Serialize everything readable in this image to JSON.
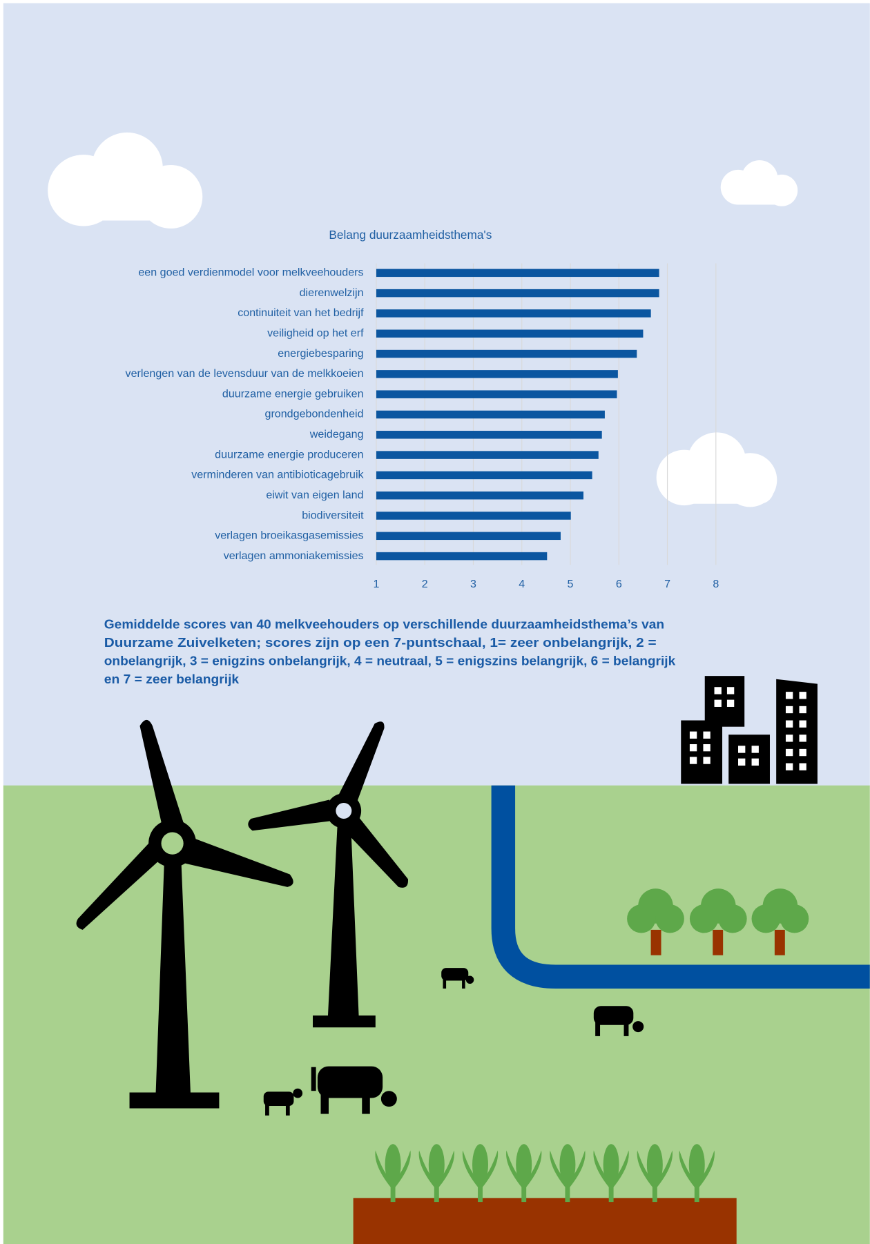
{
  "chart_data": {
    "type": "hbar",
    "title": "Belang duurzaamheidsthema's",
    "categories": [
      "een goed verdienmodel voor melkveehouders",
      "dierenwelzijn",
      "continuiteit van het bedrijf",
      "veiligheid op het erf",
      "energiebesparing",
      "verlengen van de levensduur van de melkkoeien",
      "duurzame energie gebruiken",
      "grondgebondenheid",
      "weidegang",
      "duurzame energie produceren",
      "verminderen van antibioticagebruik",
      "eiwit van eigen land",
      "biodiversiteit",
      "verlagen broeikasgasemissies",
      "verlagen ammoniakemissies"
    ],
    "values": [
      6.83,
      6.83,
      6.66,
      6.5,
      6.37,
      5.98,
      5.96,
      5.71,
      5.65,
      5.58,
      5.45,
      5.27,
      5.01,
      4.8,
      4.52
    ],
    "color": "#0b56a0",
    "xlim": [
      1,
      8
    ],
    "xticks": [
      1,
      2,
      3,
      4,
      5,
      6,
      7,
      8
    ],
    "grid": true,
    "caption": [
      "Gemiddelde scores van 40 melkveehouders op verschillende duurzaamheidsthema’s van",
      "Duurzame Zuivelketen; scores zijn op een 7-puntschaal, 1= zeer onbelangrijk, 2 =",
      "onbelangrijk, 3 = enigzins onbelangrijk, 4 = neutraal, 5 = enigszins belangrijk, 6 = belangrijk",
      "en 7 = zeer belangrijk"
    ]
  }
}
